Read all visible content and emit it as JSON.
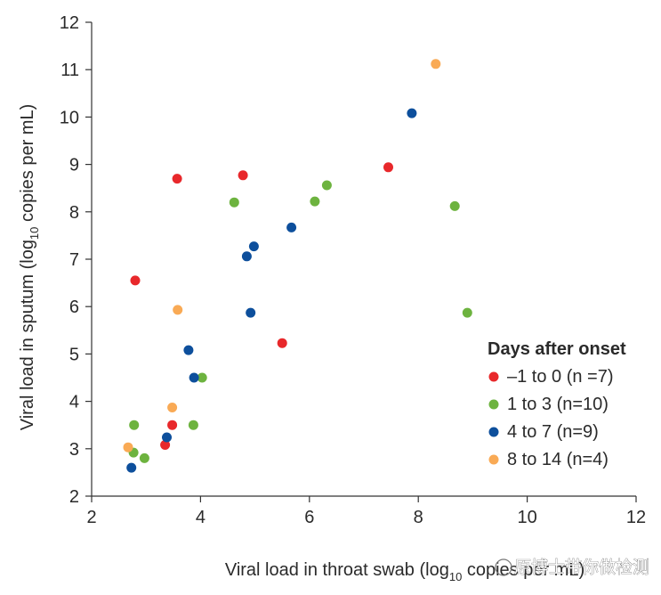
{
  "chart_data": {
    "type": "scatter",
    "title": "",
    "xlabel": {
      "pre": "Viral load in throat swab (log",
      "sub": "10",
      "post": " copies per mL)"
    },
    "ylabel": {
      "pre": "Viral load in sputum (log",
      "sub": "10",
      "post": " copies per mL)"
    },
    "xlim": [
      2,
      12
    ],
    "ylim": [
      2,
      12
    ],
    "xticks": [
      2,
      4,
      6,
      8,
      10,
      12
    ],
    "yticks": [
      2,
      3,
      4,
      5,
      6,
      7,
      8,
      9,
      10,
      11,
      12
    ],
    "grid": false,
    "legend": {
      "title": "Days after onset",
      "position": "bottom-right"
    },
    "series": [
      {
        "name": "–1 to 0 (n =7)",
        "color": "#e8282b",
        "points": [
          [
            2.8,
            6.55
          ],
          [
            3.57,
            8.7
          ],
          [
            4.78,
            8.77
          ],
          [
            7.45,
            8.94
          ],
          [
            5.5,
            5.23
          ],
          [
            3.48,
            3.5
          ],
          [
            3.35,
            3.08
          ]
        ]
      },
      {
        "name": "1 to 3 (n=10)",
        "color": "#6db33f",
        "points": [
          [
            2.78,
            3.5
          ],
          [
            2.77,
            2.92
          ],
          [
            2.97,
            2.8
          ],
          [
            3.87,
            3.5
          ],
          [
            4.03,
            4.5
          ],
          [
            4.62,
            8.2
          ],
          [
            6.1,
            8.22
          ],
          [
            6.32,
            8.56
          ],
          [
            8.67,
            8.12
          ],
          [
            8.9,
            5.87
          ]
        ]
      },
      {
        "name": "4 to 7 (n=9)",
        "color": "#0d4f9c",
        "points": [
          [
            2.73,
            2.6
          ],
          [
            3.38,
            3.24
          ],
          [
            3.78,
            5.08
          ],
          [
            3.88,
            4.5
          ],
          [
            4.85,
            7.06
          ],
          [
            4.98,
            7.27
          ],
          [
            4.92,
            5.87
          ],
          [
            5.67,
            7.67
          ],
          [
            7.88,
            10.08
          ]
        ]
      },
      {
        "name": "8 to 14 (n=4)",
        "color": "#f9aa55",
        "points": [
          [
            2.67,
            3.03
          ],
          [
            3.48,
            3.87
          ],
          [
            3.58,
            5.93
          ],
          [
            8.32,
            11.12
          ]
        ]
      }
    ]
  },
  "watermark": "原博士带你做检测"
}
